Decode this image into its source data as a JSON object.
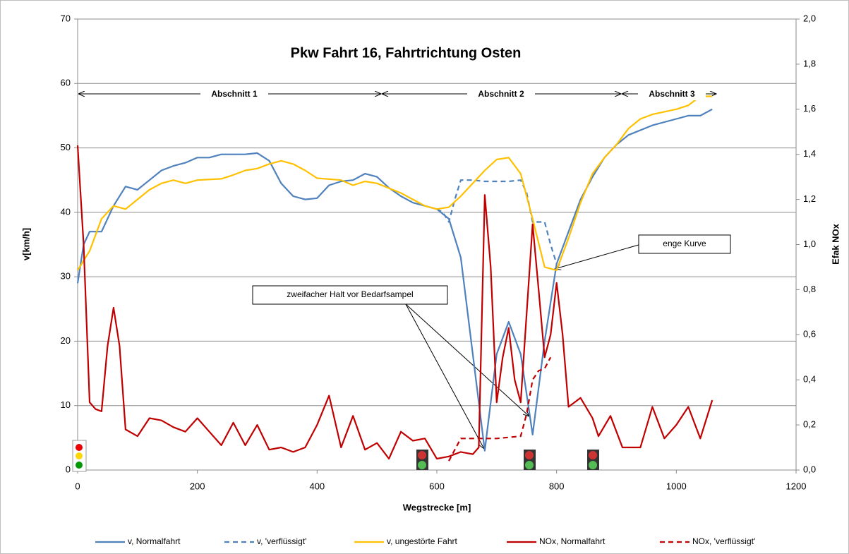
{
  "chart_data": {
    "type": "line",
    "title": "Pkw Fahrt 16, Fahrtrichtung Osten",
    "x_label": "Wegstrecke  [m]",
    "y_label": "v[km/h]",
    "y2_label": "Efak NOx",
    "xlim": [
      0,
      1200
    ],
    "xticks": [
      0,
      200,
      400,
      600,
      800,
      1000,
      1200
    ],
    "ylim": [
      0,
      70
    ],
    "yticks": [
      0,
      10,
      20,
      30,
      40,
      50,
      60,
      70
    ],
    "y2lim": [
      0,
      2.0
    ],
    "y2ticks": [
      {
        "value": 0,
        "label": "0,0"
      },
      {
        "value": 0.2,
        "label": "0,2"
      },
      {
        "value": 0.4,
        "label": "0,4"
      },
      {
        "value": 0.6,
        "label": "0,6"
      },
      {
        "value": 0.8,
        "label": "0,8"
      },
      {
        "value": 1.0,
        "label": "1,0"
      },
      {
        "value": 1.2,
        "label": "1,2"
      },
      {
        "value": 1.4,
        "label": "1,4"
      },
      {
        "value": 1.6,
        "label": "1,6"
      },
      {
        "value": 1.8,
        "label": "1,8"
      },
      {
        "value": 2.0,
        "label": "2,0"
      }
    ],
    "grid": true,
    "legend": "bottom",
    "annotations": [
      "Abschnitt 1",
      "Abschnitt 2",
      "Abschnitt 3",
      "zweifacher Halt vor Bedarfsampel",
      "enge Kurve"
    ],
    "series": [
      {
        "name": "v, Normalfahrt",
        "color": "#4f81bd",
        "dashed": false,
        "x": [
          0,
          10,
          20,
          40,
          60,
          80,
          100,
          120,
          140,
          160,
          180,
          200,
          220,
          240,
          260,
          280,
          300,
          320,
          340,
          360,
          380,
          400,
          420,
          440,
          460,
          480,
          500,
          520,
          540,
          560,
          580,
          600,
          620,
          640,
          660,
          680,
          700,
          720,
          740,
          760,
          780,
          800,
          820,
          840,
          860,
          880,
          900,
          920,
          960,
          1000,
          1020,
          1040,
          1060
        ],
        "values": [
          29,
          35,
          37,
          37,
          41,
          44,
          43.5,
          45,
          46.5,
          47.2,
          47.7,
          48.5,
          48.5,
          49,
          49,
          49,
          49.2,
          48,
          44.5,
          42.5,
          42,
          42.2,
          44.2,
          44.8,
          45,
          46,
          45.5,
          43.8,
          42.5,
          41.5,
          41,
          40.5,
          39,
          33,
          18,
          3,
          18,
          23,
          18,
          5.5,
          20,
          32,
          37,
          42,
          45.5,
          48.5,
          50.5,
          52,
          53.5,
          54.5,
          55,
          55,
          56
        ]
      },
      {
        "name": "v, 'verflüssigt'",
        "color": "#4f81bd",
        "dashed": true,
        "x": [
          600,
          610,
          620,
          630,
          640,
          660,
          680,
          700,
          720,
          740,
          750,
          760,
          780,
          790,
          800
        ],
        "values": [
          40.5,
          40,
          38.5,
          42,
          45,
          45,
          44.8,
          44.8,
          44.8,
          45,
          43,
          38.5,
          38.5,
          35,
          32
        ]
      },
      {
        "name": "v, ungestörte Fahrt",
        "color": "#ffc000",
        "dashed": false,
        "x": [
          0,
          20,
          40,
          60,
          80,
          100,
          120,
          140,
          160,
          180,
          200,
          240,
          260,
          280,
          300,
          320,
          340,
          360,
          380,
          400,
          440,
          460,
          480,
          500,
          540,
          560,
          580,
          600,
          620,
          640,
          660,
          680,
          700,
          720,
          740,
          760,
          780,
          800,
          820,
          840,
          860,
          880,
          900,
          920,
          940,
          960,
          1000,
          1020,
          1040,
          1060
        ],
        "values": [
          31,
          34,
          39,
          41,
          40.5,
          42,
          43.5,
          44.5,
          45,
          44.5,
          45,
          45.2,
          45.8,
          46.5,
          46.8,
          47.5,
          48,
          47.5,
          46.5,
          45.3,
          45,
          44.2,
          44.8,
          44.5,
          43,
          42,
          41,
          40.5,
          40.8,
          42.5,
          44.5,
          46.5,
          48.2,
          48.5,
          46,
          39,
          31.5,
          31,
          36,
          41.5,
          46,
          48.5,
          50.5,
          53,
          54.5,
          55.2,
          56,
          56.6,
          58,
          58
        ]
      },
      {
        "name": "NOx, Normalfahrt",
        "color": "#c00000",
        "dashed": false,
        "axis": "y2",
        "x": [
          0,
          10,
          20,
          30,
          40,
          50,
          60,
          70,
          80,
          100,
          120,
          140,
          160,
          180,
          200,
          220,
          240,
          260,
          280,
          300,
          320,
          340,
          360,
          380,
          400,
          420,
          440,
          460,
          480,
          500,
          520,
          540,
          560,
          580,
          600,
          620,
          640,
          660,
          670,
          680,
          690,
          700,
          710,
          720,
          730,
          740,
          760,
          770,
          780,
          790,
          800,
          810,
          820,
          840,
          860,
          870,
          890,
          910,
          940,
          960,
          980,
          1000,
          1020,
          1040,
          1060
        ],
        "values": [
          1.44,
          1.0,
          0.3,
          0.27,
          0.26,
          0.55,
          0.72,
          0.55,
          0.18,
          0.15,
          0.23,
          0.22,
          0.19,
          0.17,
          0.23,
          0.17,
          0.11,
          0.21,
          0.11,
          0.2,
          0.09,
          0.1,
          0.08,
          0.1,
          0.2,
          0.33,
          0.1,
          0.24,
          0.09,
          0.12,
          0.05,
          0.17,
          0.13,
          0.14,
          0.05,
          0.06,
          0.08,
          0.07,
          0.1,
          1.22,
          0.9,
          0.3,
          0.5,
          0.63,
          0.4,
          0.3,
          1.09,
          0.8,
          0.5,
          0.6,
          0.83,
          0.6,
          0.28,
          0.32,
          0.23,
          0.15,
          0.24,
          0.1,
          0.1,
          0.28,
          0.14,
          0.2,
          0.28,
          0.14,
          0.31
        ]
      },
      {
        "name": "NOx, 'verflüssigt'",
        "color": "#c00000",
        "dashed": true,
        "axis": "y2",
        "x": [
          620,
          640,
          660,
          700,
          740,
          750,
          760,
          770,
          780,
          790
        ],
        "values": [
          0.04,
          0.14,
          0.14,
          0.14,
          0.15,
          0.25,
          0.4,
          0.44,
          0.45,
          0.5
        ]
      }
    ]
  }
}
